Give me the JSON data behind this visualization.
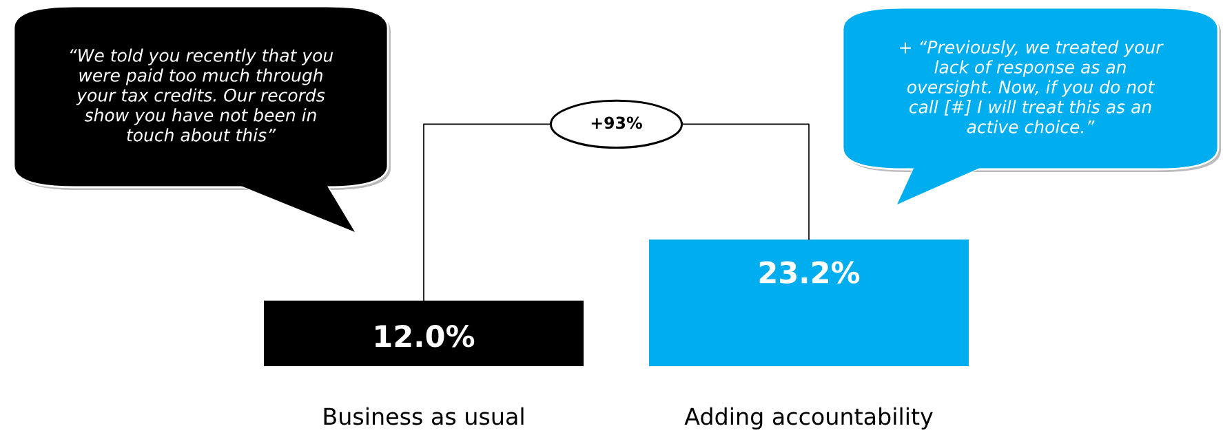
{
  "chart_data": {
    "type": "bar",
    "categories": [
      "Business as usual",
      "Adding accountability"
    ],
    "values": [
      12.0,
      23.2
    ],
    "colors": [
      "#000000",
      "#00aeef"
    ],
    "value_labels": [
      "12.0%",
      "23.2%"
    ],
    "annotations": [
      "+93%",
      "“We told you recently that you\nwere paid too much through\nyour tax credits. Our records\nshow you have not been in\ntouch about this”",
      "+ “Previously, we treated your\nlack of response as an\noversight. Now, if you do not\ncall [#] I will treat this as an\nactive choice.”"
    ]
  }
}
